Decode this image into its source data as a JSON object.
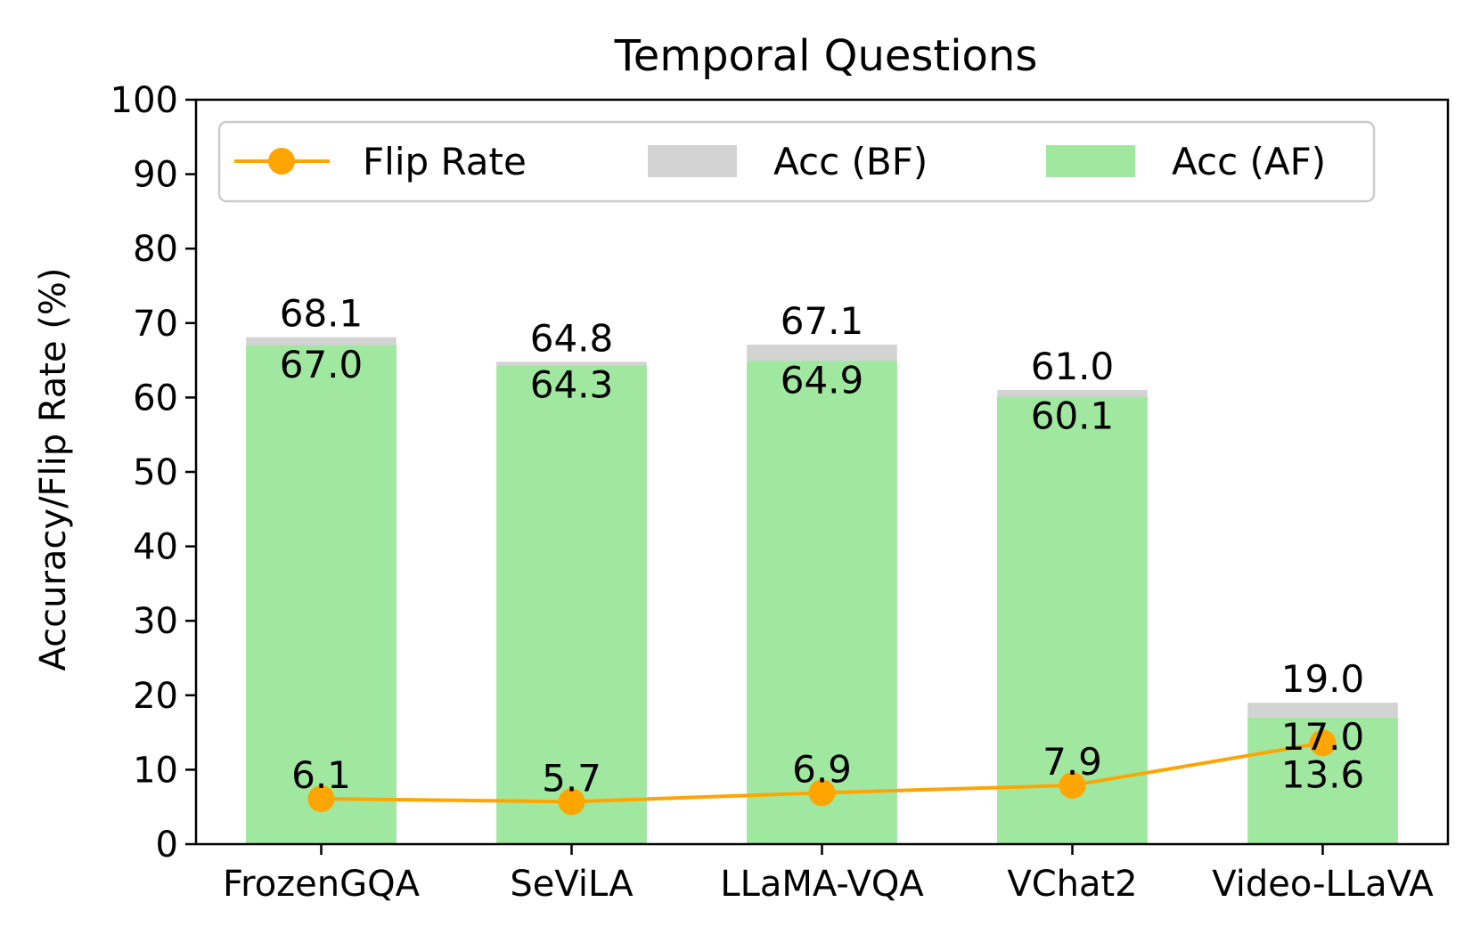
{
  "chart_data": {
    "type": "bar",
    "title": "Temporal Questions",
    "xlabel": "",
    "ylabel": "Accuracy/Flip Rate (%)",
    "ylim": [
      0,
      100
    ],
    "yticks": [
      0,
      10,
      20,
      30,
      40,
      50,
      60,
      70,
      80,
      90,
      100
    ],
    "grid": false,
    "legend_position": "top",
    "categories": [
      "FrozenGQA",
      "SeViLA",
      "LLaMA-VQA",
      "VChat2",
      "Video-LLaVA"
    ],
    "series": [
      {
        "name": "Flip Rate",
        "kind": "line",
        "color": "#ffa500",
        "values": [
          6.1,
          5.7,
          6.9,
          7.9,
          13.6
        ],
        "labels": [
          "6.1",
          "5.7",
          "6.9",
          "7.9",
          "13.6"
        ]
      },
      {
        "name": "Acc (BF)",
        "kind": "bar",
        "color": "#d3d3d3",
        "values": [
          68.1,
          64.8,
          67.1,
          61.0,
          19.0
        ],
        "labels": [
          "68.1",
          "64.8",
          "67.1",
          "61.0",
          "19.0"
        ]
      },
      {
        "name": "Acc (AF)",
        "kind": "bar",
        "color": "#a0e8a0",
        "values": [
          67.0,
          64.3,
          64.9,
          60.1,
          17.0
        ],
        "labels": [
          "67.0",
          "64.3",
          "64.9",
          "60.1",
          "17.0"
        ]
      }
    ]
  }
}
